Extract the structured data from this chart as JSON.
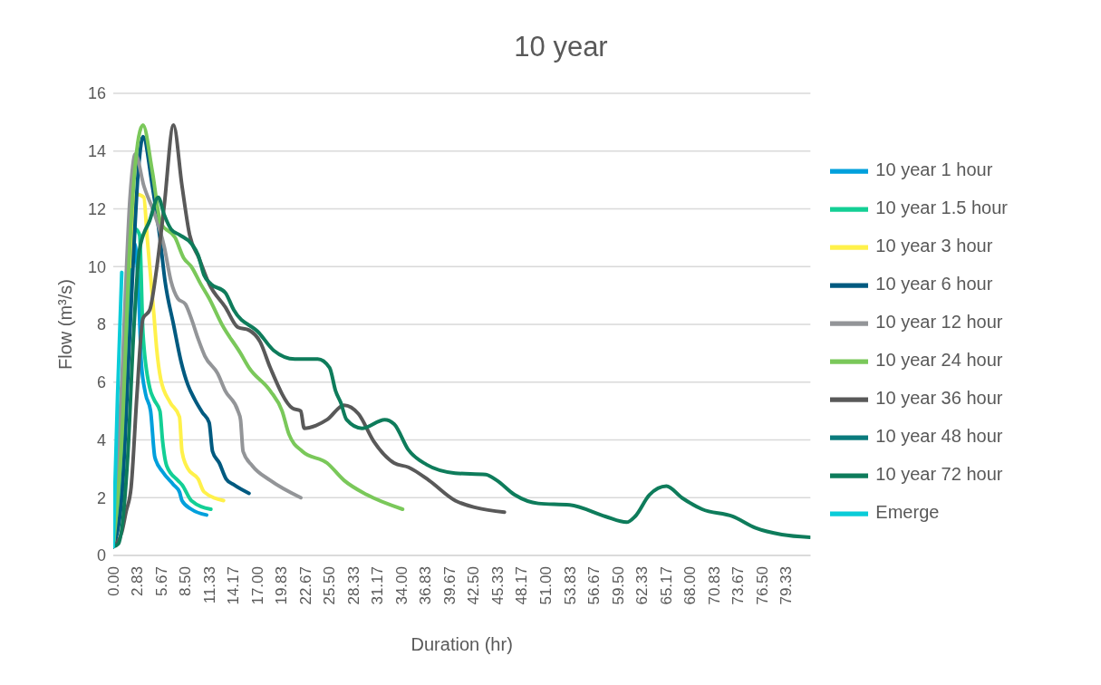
{
  "chart_data": {
    "type": "line",
    "title": "10 year",
    "xlabel": "Duration (hr)",
    "ylabel": "Flow (m³/s)",
    "xlim": [
      0,
      82.17
    ],
    "ylim": [
      0,
      16
    ],
    "yticks": [
      0,
      2,
      4,
      6,
      8,
      10,
      12,
      14,
      16
    ],
    "xticks": [
      {
        "value": 0,
        "label": "0.00"
      },
      {
        "value": 2.833,
        "label": "2.83"
      },
      {
        "value": 5.667,
        "label": "5.67"
      },
      {
        "value": 8.5,
        "label": "8.50"
      },
      {
        "value": 11.333,
        "label": "11.33"
      },
      {
        "value": 14.167,
        "label": "14.17"
      },
      {
        "value": 17,
        "label": "17.00"
      },
      {
        "value": 19.833,
        "label": "19.83"
      },
      {
        "value": 22.667,
        "label": "22.67"
      },
      {
        "value": 25.5,
        "label": "25.50"
      },
      {
        "value": 28.333,
        "label": "28.33"
      },
      {
        "value": 31.167,
        "label": "31.17"
      },
      {
        "value": 34,
        "label": "34.00"
      },
      {
        "value": 36.833,
        "label": "36.83"
      },
      {
        "value": 39.667,
        "label": "39.67"
      },
      {
        "value": 42.5,
        "label": "42.50"
      },
      {
        "value": 45.333,
        "label": "45.33"
      },
      {
        "value": 48.167,
        "label": "48.17"
      },
      {
        "value": 51,
        "label": "51.00"
      },
      {
        "value": 53.833,
        "label": "53.83"
      },
      {
        "value": 56.667,
        "label": "56.67"
      },
      {
        "value": 59.5,
        "label": "59.50"
      },
      {
        "value": 62.333,
        "label": "62.33"
      },
      {
        "value": 65.167,
        "label": "65.17"
      },
      {
        "value": 68,
        "label": "68.00"
      },
      {
        "value": 70.833,
        "label": "70.83"
      },
      {
        "value": 73.667,
        "label": "73.67"
      },
      {
        "value": 76.5,
        "label": "76.50"
      },
      {
        "value": 79.333,
        "label": "79.33"
      }
    ],
    "grid": "y",
    "legend": "right",
    "marker": "none",
    "line_style": "solid",
    "series": [
      {
        "name": "10 year 1 hour",
        "color": "#00a0dc",
        "x": [
          0,
          1,
          2,
          2.5,
          3,
          3.3,
          3.8,
          4.4,
          4.9,
          5.8,
          7.1,
          7.8,
          8.1,
          9.2,
          11.0
        ],
        "values": [
          0.3,
          4,
          9.5,
          10.8,
          9,
          6.7,
          5.6,
          5.0,
          3.4,
          2.9,
          2.45,
          2.2,
          1.9,
          1.6,
          1.4
        ]
      },
      {
        "name": "10 year 1.5 hour",
        "color": "#13cf95",
        "x": [
          0,
          1,
          2,
          2.6,
          3.1,
          3.5,
          4.3,
          4.8,
          5.5,
          5.8,
          6.3,
          7.6,
          8.1,
          9.2,
          11.5
        ],
        "values": [
          0.3,
          3,
          9,
          11.3,
          11.1,
          7.7,
          5.8,
          5.4,
          5.0,
          4.0,
          3.1,
          2.6,
          2.45,
          1.9,
          1.6
        ]
      },
      {
        "name": "10 year 3 hour",
        "color": "#fff14a",
        "x": [
          2,
          2.8,
          3.6,
          4.0,
          4.8,
          5.1,
          5.6,
          6.7,
          7.8,
          8.1,
          8.8,
          10.0,
          10.7,
          13.0
        ],
        "values": [
          10,
          12.5,
          12.4,
          11.0,
          8.3,
          7.2,
          6.1,
          5.3,
          4.8,
          3.6,
          3.0,
          2.65,
          2.2,
          1.9
        ]
      },
      {
        "name": "10 year 6 hour",
        "color": "#005a80",
        "x": [
          0,
          1,
          2,
          3,
          3.5,
          4.6,
          5.5,
          6.1,
          7.1,
          8.0,
          8.8,
          9.6,
          10.5,
          11.3,
          11.7,
          12.5,
          13.3,
          14.2,
          16.0
        ],
        "values": [
          0.3,
          2,
          8,
          13.5,
          14.5,
          12.8,
          11.0,
          9.5,
          8.0,
          6.7,
          5.9,
          5.4,
          4.95,
          4.6,
          3.6,
          3.2,
          2.65,
          2.45,
          2.15
        ]
      },
      {
        "name": "10 year 12 hour",
        "color": "#939598",
        "x": [
          0,
          1,
          2,
          2.6,
          3.6,
          4.9,
          6.0,
          6.8,
          7.6,
          8.5,
          9.2,
          10.0,
          10.8,
          12.3,
          13.2,
          14.7,
          15.0,
          15.3,
          16.4,
          18.5,
          22.1
        ],
        "values": [
          0.3,
          6,
          12.5,
          13.9,
          12.8,
          11.8,
          10.7,
          9.5,
          8.9,
          8.7,
          8.2,
          7.5,
          6.9,
          6.3,
          5.7,
          5.0,
          4.7,
          3.6,
          3.1,
          2.6,
          2.0
        ]
      },
      {
        "name": "10 year 24 hour",
        "color": "#7ac85a",
        "x": [
          0,
          1,
          2,
          3,
          3.5,
          4.6,
          5.6,
          7.3,
          8.3,
          9.2,
          10.3,
          11.3,
          12.8,
          15.0,
          16.0,
          18.5,
          19.9,
          20.7,
          22.3,
          25.2,
          27.2,
          29.9,
          34.1
        ],
        "values": [
          0.3,
          4,
          11,
          14.5,
          14.9,
          13.3,
          11.5,
          11.0,
          10.3,
          10.0,
          9.4,
          8.9,
          8.0,
          7.0,
          6.5,
          5.7,
          5.0,
          4.2,
          3.6,
          3.2,
          2.6,
          2.1,
          1.6
        ]
      },
      {
        "name": "10 year 36 hour",
        "color": "#595959",
        "x": [
          0,
          1,
          1.5,
          2.1,
          2.8,
          3.5,
          4.3,
          5.1,
          6.0,
          7.1,
          8.1,
          9.0,
          10.1,
          11.3,
          13.2,
          14.7,
          16.0,
          17.3,
          18.5,
          21.1,
          22.1,
          22.5,
          23.9,
          25.2,
          27.2,
          28.9,
          30.7,
          33.1,
          34.8,
          37.2,
          40.3,
          42.8,
          46.1
        ],
        "values": [
          0.3,
          0.8,
          1.5,
          2.35,
          5.6,
          8.2,
          8.5,
          9.9,
          12.1,
          14.9,
          12.8,
          11.1,
          10.3,
          9.4,
          8.6,
          7.9,
          7.8,
          7.4,
          6.5,
          5.1,
          5.0,
          4.4,
          4.5,
          4.7,
          5.2,
          4.9,
          3.95,
          3.2,
          3.05,
          2.6,
          1.9,
          1.65,
          1.5
        ]
      },
      {
        "name": "10 year 48 hour",
        "color": "#0a7b7d"
      },
      {
        "name": "10 year 72 hour",
        "color": "#0e7c5b",
        "x": [
          0,
          0.6,
          1.7,
          2.4,
          3.1,
          4.3,
          5.3,
          6.0,
          6.8,
          7.8,
          9.2,
          10.0,
          10.7,
          11.5,
          13.2,
          14.2,
          17.2,
          18.9,
          21.4,
          23.2,
          24.1,
          25.5,
          26.2,
          26.8,
          27.5,
          29.3,
          32.0,
          33.1,
          34.8,
          36.9,
          40.3,
          43.9,
          45.2,
          47.3,
          50.1,
          53.8,
          58.0,
          60.5,
          61.5,
          63.2,
          65.2,
          67.0,
          69.4,
          73.0,
          75.7,
          78.8,
          82.1
        ],
        "values": [
          0.3,
          0.4,
          3.4,
          7.7,
          10.6,
          11.6,
          12.4,
          11.8,
          11.3,
          11.1,
          10.8,
          10.4,
          9.7,
          9.4,
          9.1,
          8.5,
          7.7,
          7.1,
          6.8,
          6.8,
          6.8,
          6.5,
          5.7,
          5.3,
          4.7,
          4.4,
          4.7,
          4.55,
          3.65,
          3.15,
          2.85,
          2.8,
          2.6,
          2.1,
          1.8,
          1.75,
          1.35,
          1.15,
          1.35,
          2.1,
          2.4,
          2.0,
          1.6,
          1.35,
          0.95,
          0.72,
          0.63
        ]
      },
      {
        "name": "Emerge",
        "color": "#0accd8",
        "x": [
          0,
          0.5,
          1
        ],
        "values": [
          0.3,
          5.5,
          9.8
        ]
      }
    ]
  }
}
